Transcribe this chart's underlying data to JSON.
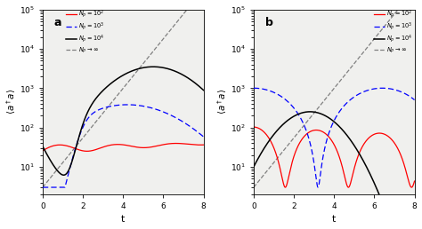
{
  "xlabel": "t",
  "ylabel": "$\\langle a^\\dagger a \\rangle$",
  "xlim": [
    0,
    8
  ],
  "ylim": [
    2,
    100000.0
  ],
  "xticks": [
    0,
    2,
    4,
    6,
    8
  ],
  "legend_labels": [
    "$N_P=10^2$",
    "$N_P=10^3$",
    "$N_P=10^4$",
    "$N_P\\rightarrow\\infty$"
  ],
  "panel_labels": [
    "a",
    "b"
  ],
  "background": "#f0f0ee",
  "colors_rgb": [
    "red",
    "blue",
    "black",
    "gray"
  ]
}
